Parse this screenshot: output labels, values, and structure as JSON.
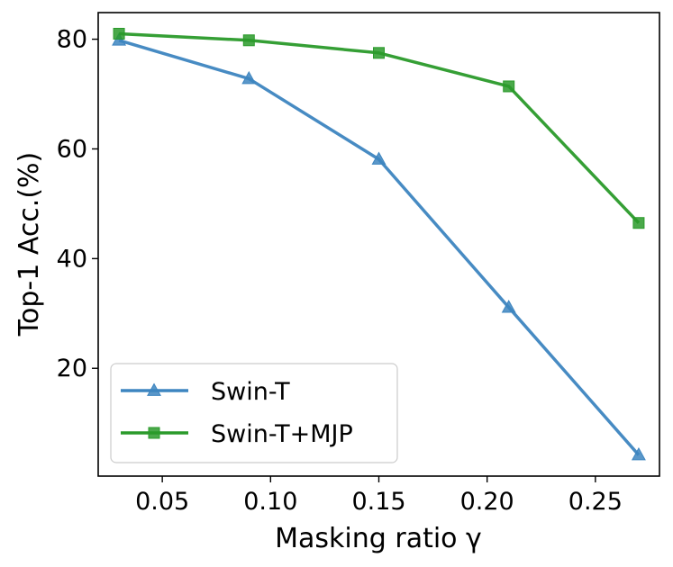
{
  "chart_data": {
    "type": "line",
    "xlabel": "Masking ratio γ",
    "ylabel": "Top-1 Acc.(%)",
    "xlim": [
      0.0204,
      0.2796
    ],
    "ylim": [
      0.35,
      84.85
    ],
    "xticks": [
      0.05,
      0.1,
      0.15,
      0.2,
      0.25
    ],
    "xtick_labels": [
      "0.05",
      "0.10",
      "0.15",
      "0.20",
      "0.25"
    ],
    "yticks": [
      20,
      40,
      60,
      80
    ],
    "ytick_labels": [
      "20",
      "40",
      "60",
      "80"
    ],
    "grid": false,
    "legend_position": "lower-left",
    "x": [
      0.03,
      0.09,
      0.15,
      0.21,
      0.27
    ],
    "series": [
      {
        "name": "Swin-T",
        "marker": "triangle",
        "color": "#3d85c0",
        "values": [
          79.8,
          72.8,
          58.1,
          31.1,
          4.2
        ]
      },
      {
        "name": "Swin-T+MJP",
        "marker": "square",
        "color": "#2a9a2a",
        "values": [
          81.0,
          79.8,
          77.5,
          71.4,
          46.5
        ]
      }
    ]
  }
}
